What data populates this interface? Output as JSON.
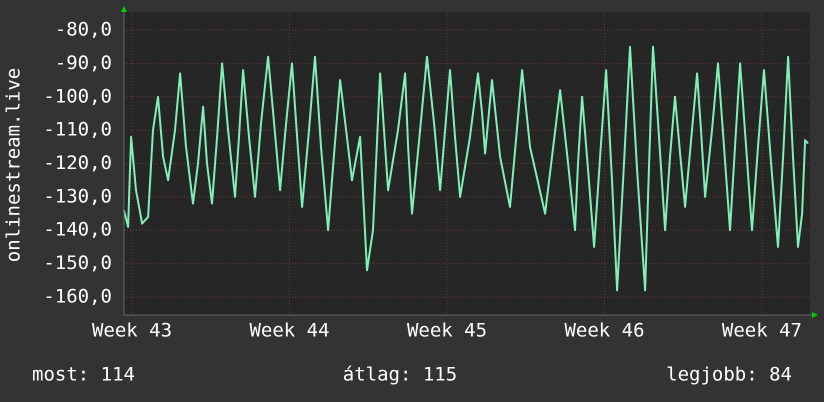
{
  "chart_data": {
    "type": "line",
    "ylabel": "onlinestream.live",
    "stats": [
      "most: 114",
      "átlag: 115",
      "legjobb: 84"
    ],
    "grid": true,
    "ylim": [
      -165.4,
      -74.6
    ],
    "yticks": [
      {
        "value": -80,
        "label": "-80,0"
      },
      {
        "value": -90,
        "label": "-90,0"
      },
      {
        "value": -100,
        "label": "-100,0"
      },
      {
        "value": -110,
        "label": "-110,0"
      },
      {
        "value": -120,
        "label": "-120,0"
      },
      {
        "value": -130,
        "label": "-130,0"
      },
      {
        "value": -140,
        "label": "-140,0"
      },
      {
        "value": -150,
        "label": "-150,0"
      },
      {
        "value": -160,
        "label": "-160,0"
      }
    ],
    "xlim": [
      42.949,
      47.305
    ],
    "xticks": [
      {
        "value": 43,
        "label": "Week 43"
      },
      {
        "value": 44,
        "label": "Week 44"
      },
      {
        "value": 45,
        "label": "Week 45"
      },
      {
        "value": 46,
        "label": "Week 46"
      },
      {
        "value": 47,
        "label": "Week 47"
      }
    ],
    "x": [
      42.949,
      42.975,
      42.994,
      43.025,
      43.064,
      43.102,
      43.133,
      43.165,
      43.197,
      43.229,
      43.273,
      43.305,
      43.343,
      43.387,
      43.419,
      43.451,
      43.476,
      43.508,
      43.54,
      43.572,
      43.61,
      43.654,
      43.679,
      43.705,
      43.743,
      43.781,
      43.819,
      43.864,
      43.902,
      43.94,
      43.978,
      44.016,
      44.048,
      44.08,
      44.124,
      44.162,
      44.2,
      44.245,
      44.283,
      44.321,
      44.359,
      44.397,
      44.448,
      44.492,
      44.53,
      44.575,
      44.6,
      44.626,
      44.689,
      44.734,
      44.753,
      44.778,
      44.829,
      44.873,
      44.918,
      44.956,
      44.988,
      45.019,
      45.051,
      45.083,
      45.146,
      45.197,
      45.223,
      45.242,
      45.286,
      45.337,
      45.4,
      45.438,
      45.477,
      45.527,
      45.623,
      45.667,
      45.718,
      45.769,
      45.813,
      45.832,
      45.858,
      45.896,
      45.934,
      45.972,
      46.01,
      46.048,
      46.08,
      46.124,
      46.162,
      46.207,
      46.258,
      46.283,
      46.308,
      46.346,
      46.385,
      46.416,
      46.448,
      46.48,
      46.512,
      46.55,
      46.588,
      46.613,
      46.639,
      46.683,
      46.721,
      46.759,
      46.797,
      46.829,
      46.861,
      46.899,
      46.937,
      46.975,
      47.013,
      47.058,
      47.102,
      47.134,
      47.166,
      47.197,
      47.229,
      47.255,
      47.274,
      47.293
    ],
    "series": [
      {
        "color": "#80f0b8",
        "values": [
          -134,
          -139,
          -112,
          -128,
          -138,
          -136,
          -110,
          -100,
          -118,
          -125,
          -110,
          -93,
          -115,
          -132,
          -120,
          -103,
          -120,
          -132,
          -112,
          -90,
          -110,
          -130,
          -112,
          -92,
          -112,
          -130,
          -108,
          -88,
          -108,
          -128,
          -108,
          -90,
          -112,
          -133,
          -110,
          -88,
          -115,
          -140,
          -117,
          -95,
          -110,
          -125,
          -112,
          -152,
          -140,
          -93,
          -110,
          -128,
          -110,
          -93,
          -115,
          -135,
          -110,
          -88,
          -108,
          -128,
          -110,
          -92,
          -112,
          -130,
          -112,
          -93,
          -105,
          -117,
          -95,
          -118,
          -133,
          -113,
          -92,
          -115,
          -135,
          -118,
          -98,
          -120,
          -140,
          -120,
          -100,
          -122,
          -145,
          -118,
          -92,
          -125,
          -158,
          -120,
          -85,
          -122,
          -158,
          -120,
          -85,
          -112,
          -140,
          -118,
          -100,
          -117,
          -133,
          -113,
          -93,
          -110,
          -130,
          -110,
          -90,
          -115,
          -140,
          -115,
          -90,
          -115,
          -140,
          -115,
          -92,
          -120,
          -145,
          -118,
          -88,
          -118,
          -145,
          -135,
          -113,
          -114
        ]
      }
    ]
  }
}
